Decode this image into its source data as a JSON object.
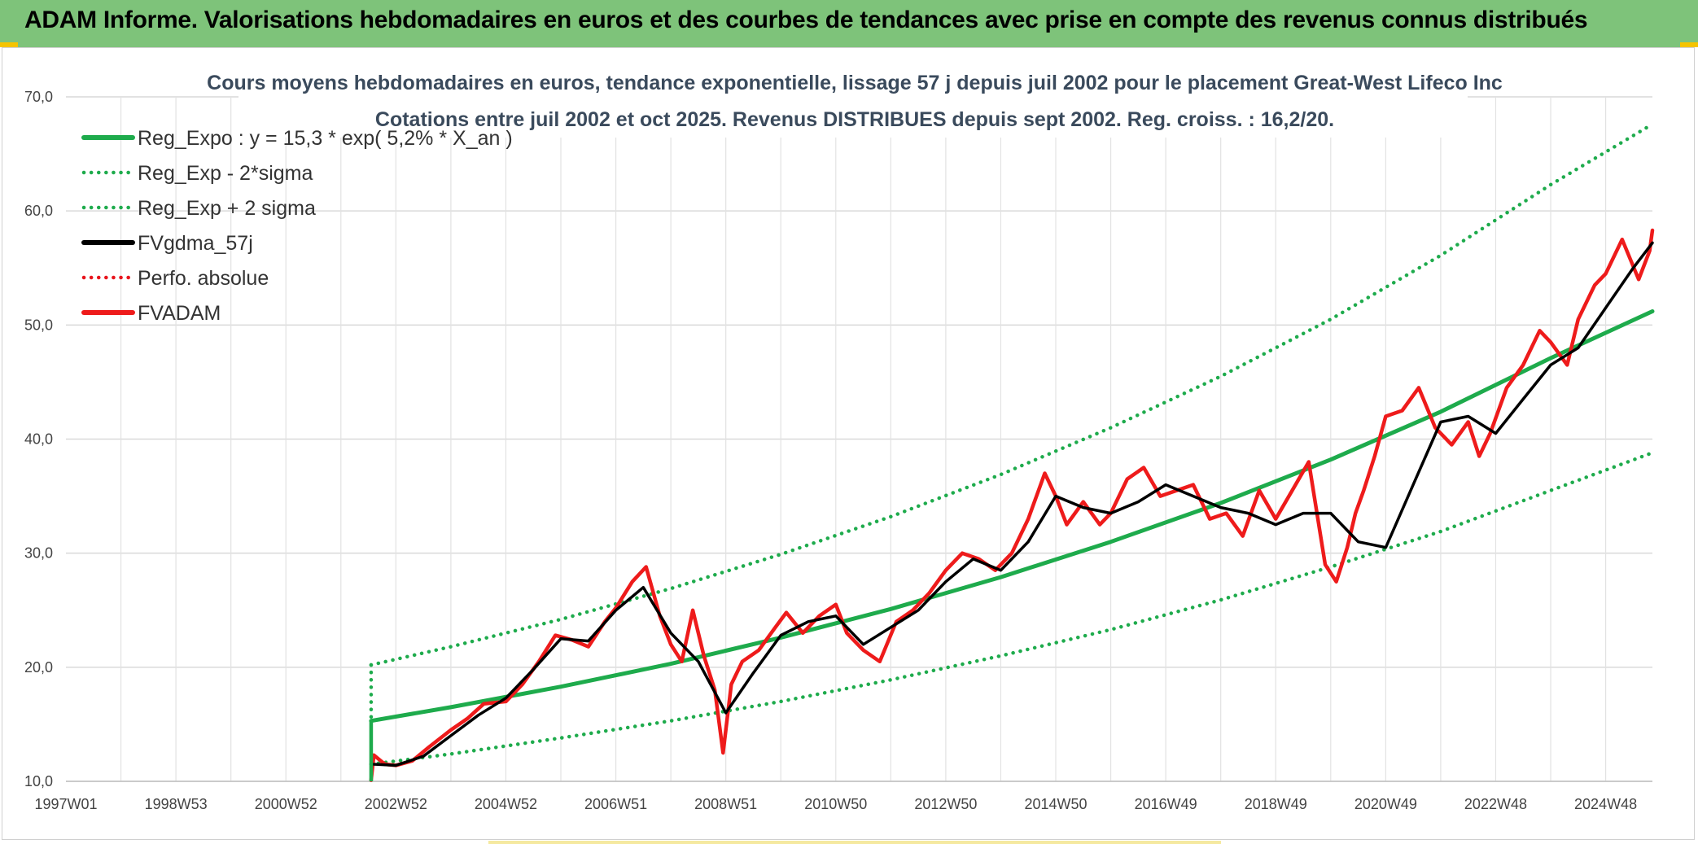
{
  "header": {
    "title": "ADAM Informe. Valorisations hebdomadaires en euros et des courbes de tendances avec prise en compte des revenus connus distribués"
  },
  "chart_data": {
    "type": "line",
    "title": "Cours moyens hebdomadaires en euros, tendance exponentielle, lissage 57 j depuis juil 2002 pour le placement Great-West Lifeco Inc",
    "subtitle": "Cotations entre juil 2002 et oct 2025. Revenus DISTRIBUES depuis sept 2002. Reg. croiss. : 16,2/20.",
    "xlabel": "",
    "ylabel": "",
    "xlim": [
      1997.0,
      2025.85
    ],
    "ylim": [
      10,
      70
    ],
    "yticks": [
      "10,0",
      "20,0",
      "30,0",
      "40,0",
      "50,0",
      "60,0",
      "70,0"
    ],
    "yticks_values": [
      10,
      20,
      30,
      40,
      50,
      60,
      70
    ],
    "xticks": [
      "1997W01",
      "1998W53",
      "2000W52",
      "2002W52",
      "2004W52",
      "2006W51",
      "2008W51",
      "2010W50",
      "2012W50",
      "2014W50",
      "2016W49",
      "2018W49",
      "2020W49",
      "2022W48",
      "2024W48"
    ],
    "xticks_values": [
      1997.0,
      1999.0,
      2001.0,
      2003.0,
      2005.0,
      2007.0,
      2009.0,
      2011.0,
      2013.0,
      2015.0,
      2017.0,
      2019.0,
      2021.0,
      2023.0,
      2025.0
    ],
    "grid": true,
    "legend_position": "top-left",
    "series": [
      {
        "name": "Reg_Expo : y = 15,3 * exp( 5,2% *  X_an )",
        "color": "#1eab4c",
        "style": "solid",
        "x": [
          2002.55,
          2004.0,
          2006.0,
          2008.0,
          2010.0,
          2012.0,
          2014.0,
          2016.0,
          2018.0,
          2020.0,
          2022.0,
          2024.0,
          2025.85
        ],
        "y": [
          15.3,
          16.5,
          18.3,
          20.3,
          22.6,
          25.1,
          27.9,
          31.0,
          34.4,
          38.2,
          42.4,
          47.1,
          51.2
        ]
      },
      {
        "name": "Reg_Exp - 2*sigma",
        "color": "#1eab4c",
        "style": "dotted",
        "x": [
          2002.55,
          2004.0,
          2006.0,
          2008.0,
          2010.0,
          2012.0,
          2014.0,
          2016.0,
          2018.0,
          2020.0,
          2022.0,
          2024.0,
          2025.85
        ],
        "y": [
          11.5,
          12.4,
          13.8,
          15.3,
          17.0,
          18.9,
          21.0,
          23.3,
          25.9,
          28.8,
          31.9,
          35.5,
          38.8
        ]
      },
      {
        "name": "Reg_Exp + 2 sigma",
        "color": "#1eab4c",
        "style": "dotted",
        "x": [
          2002.55,
          2004.0,
          2006.0,
          2008.0,
          2010.0,
          2012.0,
          2014.0,
          2016.0,
          2018.0,
          2020.0,
          2022.0,
          2024.0,
          2025.85
        ],
        "y": [
          20.2,
          21.8,
          24.2,
          26.9,
          29.9,
          33.2,
          36.9,
          41.0,
          45.5,
          50.5,
          56.1,
          62.3,
          67.6
        ]
      },
      {
        "name": "FVgdma_57j",
        "color": "#000000",
        "style": "solid",
        "x": [
          2002.6,
          2003.0,
          2003.5,
          2004.0,
          2004.5,
          2005.0,
          2005.5,
          2006.0,
          2006.5,
          2007.0,
          2007.5,
          2008.0,
          2008.5,
          2009.0,
          2009.5,
          2010.0,
          2010.5,
          2011.0,
          2011.5,
          2012.0,
          2012.5,
          2013.0,
          2013.5,
          2014.0,
          2014.5,
          2015.0,
          2015.5,
          2016.0,
          2016.5,
          2017.0,
          2017.5,
          2018.0,
          2018.5,
          2019.0,
          2019.5,
          2020.0,
          2020.5,
          2021.0,
          2021.5,
          2022.0,
          2022.5,
          2023.0,
          2023.5,
          2024.0,
          2024.5,
          2025.0,
          2025.5,
          2025.85
        ],
        "y": [
          11.5,
          11.4,
          12.2,
          14.0,
          15.8,
          17.3,
          19.8,
          22.5,
          22.3,
          25.0,
          27.0,
          23.0,
          20.5,
          16.0,
          19.5,
          22.8,
          24.0,
          24.5,
          22.0,
          23.5,
          25.0,
          27.5,
          29.5,
          28.5,
          31.0,
          35.0,
          34.0,
          33.5,
          34.5,
          36.0,
          35.0,
          34.0,
          33.5,
          32.5,
          33.5,
          33.5,
          31.0,
          30.5,
          36.0,
          41.5,
          42.0,
          40.5,
          43.5,
          46.5,
          48.0,
          51.5,
          55.0,
          57.2
        ]
      },
      {
        "name": "Perfo. absolue",
        "color": "#e8141c",
        "style": "dotted",
        "x": [
          2002.55,
          2025.85
        ],
        "y": [
          10.0,
          57.5
        ]
      },
      {
        "name": "FVADAM",
        "color": "#ee1b1b",
        "style": "solid",
        "x": [
          2002.55,
          2002.6,
          2002.8,
          2003.0,
          2003.3,
          2003.6,
          2004.0,
          2004.3,
          2004.6,
          2005.0,
          2005.3,
          2005.6,
          2005.9,
          2006.2,
          2006.5,
          2006.8,
          2007.0,
          2007.3,
          2007.55,
          2007.8,
          2008.0,
          2008.2,
          2008.4,
          2008.6,
          2008.8,
          2008.95,
          2009.1,
          2009.3,
          2009.6,
          2009.9,
          2010.1,
          2010.4,
          2010.7,
          2011.0,
          2011.2,
          2011.5,
          2011.8,
          2012.1,
          2012.4,
          2012.7,
          2013.0,
          2013.3,
          2013.6,
          2013.9,
          2014.2,
          2014.5,
          2014.8,
          2015.0,
          2015.2,
          2015.5,
          2015.8,
          2016.0,
          2016.3,
          2016.6,
          2016.9,
          2017.2,
          2017.5,
          2017.8,
          2018.1,
          2018.4,
          2018.7,
          2019.0,
          2019.3,
          2019.6,
          2019.9,
          2020.1,
          2020.3,
          2020.45,
          2020.6,
          2020.8,
          2021.0,
          2021.3,
          2021.6,
          2021.9,
          2022.2,
          2022.5,
          2022.7,
          2022.9,
          2023.2,
          2023.5,
          2023.8,
          2024.0,
          2024.3,
          2024.5,
          2024.8,
          2025.0,
          2025.3,
          2025.6,
          2025.8,
          2025.85
        ],
        "y": [
          10.1,
          12.3,
          11.5,
          11.4,
          11.8,
          13.0,
          14.5,
          15.5,
          16.8,
          17.0,
          18.5,
          20.5,
          22.8,
          22.4,
          21.8,
          24.0,
          25.2,
          27.5,
          28.8,
          24.5,
          22.0,
          20.5,
          25.0,
          21.0,
          18.0,
          12.5,
          18.5,
          20.5,
          21.5,
          23.5,
          24.8,
          23.0,
          24.5,
          25.5,
          23.0,
          21.5,
          20.5,
          24.0,
          25.0,
          26.5,
          28.5,
          30.0,
          29.5,
          28.5,
          30.0,
          33.0,
          37.0,
          35.0,
          32.5,
          34.5,
          32.5,
          33.5,
          36.5,
          37.5,
          35.0,
          35.5,
          36.0,
          33.0,
          33.5,
          31.5,
          35.5,
          33.0,
          35.5,
          38.0,
          29.0,
          27.5,
          30.5,
          33.5,
          35.5,
          38.5,
          42.0,
          42.5,
          44.5,
          41.0,
          39.5,
          41.5,
          38.5,
          40.5,
          44.5,
          46.5,
          49.5,
          48.5,
          46.5,
          50.5,
          53.5,
          54.5,
          57.5,
          54.0,
          56.5,
          58.3
        ]
      }
    ]
  }
}
